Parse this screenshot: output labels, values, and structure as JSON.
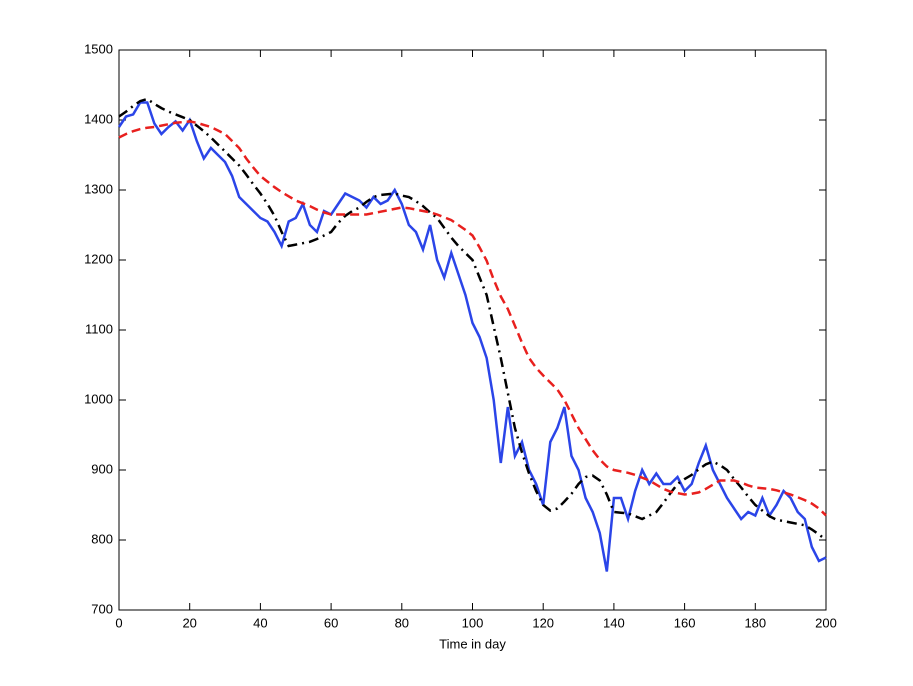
{
  "chart_data": {
    "type": "line",
    "xlabel": "Time in day",
    "x": [
      0,
      2,
      4,
      6,
      8,
      10,
      12,
      14,
      16,
      18,
      20,
      22,
      24,
      26,
      28,
      30,
      32,
      34,
      36,
      38,
      40,
      42,
      44,
      46,
      48,
      50,
      52,
      54,
      56,
      58,
      60,
      62,
      64,
      66,
      68,
      70,
      72,
      74,
      76,
      78,
      80,
      82,
      84,
      86,
      88,
      90,
      92,
      94,
      96,
      98,
      100,
      102,
      104,
      106,
      108,
      110,
      112,
      114,
      116,
      118,
      120,
      122,
      124,
      126,
      128,
      130,
      132,
      134,
      136,
      138,
      140,
      142,
      144,
      146,
      148,
      150,
      152,
      154,
      156,
      158,
      160,
      162,
      164,
      166,
      168,
      170,
      172,
      174,
      176,
      178,
      180,
      182,
      184,
      186,
      188,
      190,
      192,
      194,
      196,
      198,
      200
    ],
    "series": [
      {
        "color": "#2b45e8",
        "line_style": "solid",
        "values": [
          1390,
          1405,
          1408,
          1425,
          1425,
          1395,
          1380,
          1390,
          1398,
          1385,
          1400,
          1370,
          1345,
          1360,
          1350,
          1340,
          1320,
          1290,
          1280,
          1270,
          1260,
          1255,
          1240,
          1220,
          1255,
          1260,
          1280,
          1250,
          1240,
          1270,
          1265,
          1280,
          1295,
          1290,
          1285,
          1275,
          1290,
          1280,
          1285,
          1300,
          1280,
          1250,
          1240,
          1215,
          1250,
          1200,
          1175,
          1210,
          1180,
          1150,
          1110,
          1090,
          1060,
          1000,
          910,
          990,
          920,
          940,
          900,
          880,
          850,
          940,
          960,
          990,
          920,
          900,
          860,
          840,
          810,
          755,
          860,
          860,
          830,
          870,
          900,
          880,
          895,
          880,
          880,
          890,
          870,
          880,
          910,
          935,
          900,
          880,
          860,
          845,
          830,
          840,
          835,
          860,
          835,
          850,
          870,
          860,
          840,
          830,
          790,
          770,
          775
        ]
      },
      {
        "color": "#000000",
        "line_style": "dashdot",
        "values": [
          1405,
          1412,
          1420,
          1427,
          1430,
          1423,
          1417,
          1412,
          1408,
          1404,
          1400,
          1392,
          1384,
          1375,
          1365,
          1355,
          1345,
          1335,
          1322,
          1308,
          1295,
          1280,
          1263,
          1240,
          1220,
          1222,
          1224,
          1226,
          1230,
          1235,
          1240,
          1253,
          1263,
          1270,
          1275,
          1283,
          1290,
          1293,
          1294,
          1295,
          1292,
          1290,
          1284,
          1277,
          1268,
          1260,
          1246,
          1232,
          1220,
          1210,
          1200,
          1175,
          1150,
          1105,
          1060,
          1010,
          960,
          925,
          895,
          870,
          850,
          842,
          845,
          855,
          866,
          880,
          890,
          892,
          885,
          865,
          840,
          839,
          838,
          834,
          830,
          835,
          840,
          853,
          867,
          880,
          887,
          893,
          901,
          908,
          912,
          907,
          900,
          887,
          875,
          862,
          850,
          842,
          834,
          829,
          827,
          825,
          823,
          821,
          815,
          808,
          800
        ]
      },
      {
        "color": "#e8201e",
        "line_style": "dashed",
        "values": [
          1375,
          1380,
          1384,
          1387,
          1389,
          1390,
          1392,
          1394,
          1396,
          1397,
          1398,
          1396,
          1393,
          1390,
          1385,
          1380,
          1370,
          1360,
          1345,
          1332,
          1320,
          1312,
          1304,
          1297,
          1291,
          1285,
          1281,
          1277,
          1272,
          1268,
          1265,
          1265,
          1265,
          1265,
          1265,
          1265,
          1267,
          1269,
          1271,
          1273,
          1275,
          1274,
          1272,
          1270,
          1268,
          1265,
          1261,
          1257,
          1250,
          1243,
          1235,
          1218,
          1199,
          1172,
          1148,
          1130,
          1106,
          1082,
          1060,
          1046,
          1035,
          1025,
          1015,
          1000,
          980,
          960,
          944,
          928,
          915,
          905,
          900,
          898,
          896,
          893,
          889,
          885,
          879,
          873,
          869,
          867,
          865,
          866,
          868,
          873,
          879,
          885,
          885,
          885,
          882,
          878,
          875,
          874,
          873,
          871,
          868,
          865,
          861,
          857,
          852,
          845,
          835
        ]
      }
    ],
    "xlim": [
      0,
      200
    ],
    "xticks": [
      0,
      20,
      40,
      60,
      80,
      100,
      120,
      140,
      160,
      180,
      200
    ],
    "ylim": [
      700,
      1500
    ],
    "yticks": [
      700,
      800,
      900,
      1000,
      1100,
      1200,
      1300,
      1400,
      1500
    ]
  }
}
